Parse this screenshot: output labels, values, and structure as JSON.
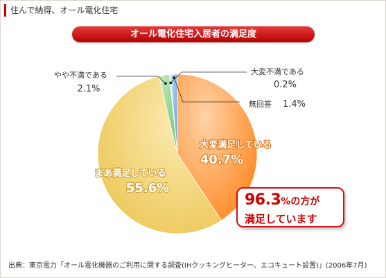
{
  "page": {
    "header": "住んで納得、オール電化住宅",
    "source": "出典：東京電力「オール電化機器のご利用に関する調査(IHクッキングヒーター、エコキュート設置)」(2006年7月)"
  },
  "callout": {
    "value": "96.3",
    "suffix": "%の方が",
    "line2": "満足しています"
  },
  "chart_data": {
    "type": "pie",
    "title": "オール電化住宅入居者の満足度",
    "slices": [
      {
        "label": "大変満足している",
        "value": 40.7,
        "display": "40.7%",
        "color": "#ff8a1c"
      },
      {
        "label": "まあ満足している",
        "value": 55.6,
        "display": "55.6%",
        "color": "#f0cc5c"
      },
      {
        "label": "やや不満である",
        "value": 2.1,
        "display": "2.1%",
        "color": "#8fd08a"
      },
      {
        "label": "大変不満である",
        "value": 0.2,
        "display": "0.2%",
        "color": "#cfe4f0"
      },
      {
        "label": "無回答",
        "value": 1.4,
        "display": "1.4%",
        "color": "#86b8e8"
      }
    ]
  }
}
